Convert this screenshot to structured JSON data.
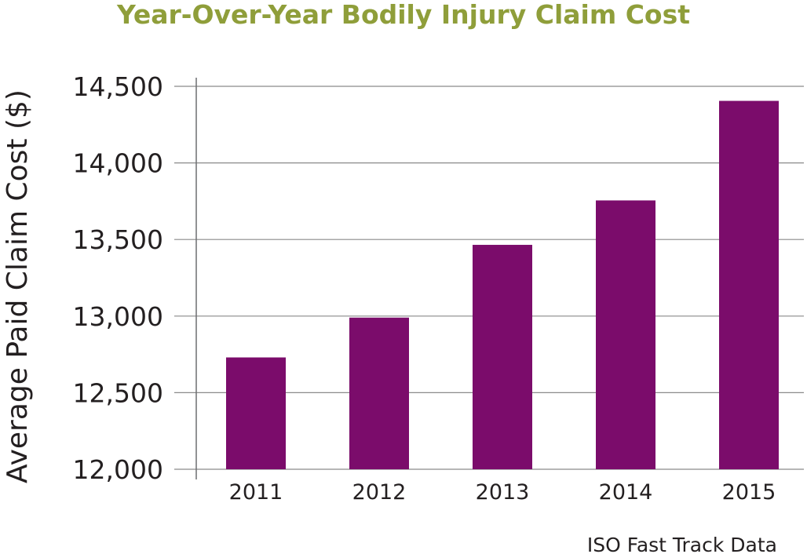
{
  "chart_data": {
    "type": "bar",
    "title": "Year-Over-Year Bodily Injury Claim Cost",
    "xlabel": "",
    "ylabel": "Average Paid Claim Cost ($)",
    "categories": [
      "2011",
      "2012",
      "2013",
      "2014",
      "2015"
    ],
    "values": [
      12730,
      12990,
      13465,
      13755,
      14405
    ],
    "ylim": [
      12000,
      14500
    ],
    "yticks": [
      12000,
      12500,
      13000,
      13500,
      14000,
      14500
    ],
    "ytick_labels": [
      "12,000",
      "12,500",
      "13,000",
      "13,500",
      "14,000",
      "14,500"
    ],
    "grid": "horizontal",
    "legend": "none",
    "source": "ISO Fast Track Data"
  },
  "colors": {
    "bar": "#7b0c6b",
    "title": "#8f9e3a"
  }
}
